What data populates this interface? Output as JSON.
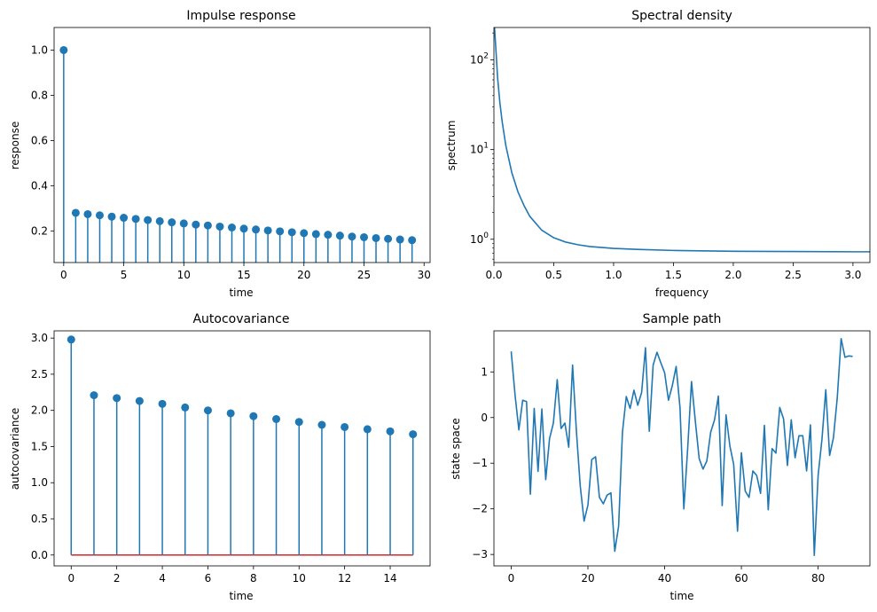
{
  "chart_data": [
    {
      "type": "stem",
      "title": "Impulse response",
      "xlabel": "time",
      "ylabel": "response",
      "xlim": [
        -0.8,
        30.5
      ],
      "ylim": [
        0.06,
        1.1
      ],
      "xticks": [
        0,
        5,
        10,
        15,
        20,
        25,
        30
      ],
      "yticks": [
        0.2,
        0.4,
        0.6,
        0.8,
        1.0
      ],
      "ytick_labels": [
        "0.2",
        "0.4",
        "0.6",
        "0.8",
        "1.0"
      ],
      "x": [
        0,
        1,
        2,
        3,
        4,
        5,
        6,
        7,
        8,
        9,
        10,
        11,
        12,
        13,
        14,
        15,
        16,
        17,
        18,
        19,
        20,
        21,
        22,
        23,
        24,
        25,
        26,
        27,
        28,
        29
      ],
      "values": [
        1.0,
        0.28,
        0.274,
        0.269,
        0.263,
        0.258,
        0.253,
        0.248,
        0.243,
        0.238,
        0.233,
        0.228,
        0.224,
        0.219,
        0.215,
        0.21,
        0.206,
        0.202,
        0.198,
        0.194,
        0.19,
        0.186,
        0.183,
        0.179,
        0.175,
        0.172,
        0.168,
        0.165,
        0.162,
        0.159
      ],
      "color": "#1f77b4"
    },
    {
      "type": "line",
      "title": "Spectral density",
      "xlabel": "frequency",
      "ylabel": "spectrum",
      "yscale": "log",
      "xlim": [
        0,
        3.1416
      ],
      "ylim": [
        0.55,
        230
      ],
      "xticks": [
        0,
        0.5,
        1.0,
        1.5,
        2.0,
        2.5,
        3.0
      ],
      "xtick_labels": [
        "0.0",
        "0.5",
        "1.0",
        "1.5",
        "2.0",
        "2.5",
        "3.0"
      ],
      "yticks": [
        1,
        10,
        100
      ],
      "ytick_labels": [
        "10^0",
        "10^1",
        "10^2"
      ],
      "x": [
        0.005,
        0.01,
        0.02,
        0.03,
        0.05,
        0.07,
        0.1,
        0.15,
        0.2,
        0.25,
        0.3,
        0.4,
        0.5,
        0.6,
        0.7,
        0.8,
        1.0,
        1.2,
        1.5,
        1.8,
        2.0,
        2.5,
        3.0,
        3.1416
      ],
      "values": [
        230,
        180,
        110,
        65,
        33,
        20,
        11,
        5.5,
        3.4,
        2.4,
        1.8,
        1.26,
        1.04,
        0.93,
        0.87,
        0.83,
        0.79,
        0.77,
        0.75,
        0.74,
        0.735,
        0.73,
        0.725,
        0.725
      ],
      "color": "#1f77b4"
    },
    {
      "type": "stem",
      "title": "Autocovariance",
      "xlabel": "time",
      "ylabel": "autocovariance",
      "xlim": [
        -0.75,
        15.75
      ],
      "ylim": [
        -0.15,
        3.1
      ],
      "xticks": [
        0,
        2,
        4,
        6,
        8,
        10,
        12,
        14
      ],
      "yticks": [
        0.0,
        0.5,
        1.0,
        1.5,
        2.0,
        2.5,
        3.0
      ],
      "ytick_labels": [
        "0.0",
        "0.5",
        "1.0",
        "1.5",
        "2.0",
        "2.5",
        "3.0"
      ],
      "x": [
        0,
        1,
        2,
        3,
        4,
        5,
        6,
        7,
        8,
        9,
        10,
        11,
        12,
        13,
        14,
        15
      ],
      "values": [
        2.98,
        2.21,
        2.17,
        2.13,
        2.09,
        2.04,
        2.0,
        1.96,
        1.92,
        1.88,
        1.84,
        1.8,
        1.77,
        1.74,
        1.71,
        1.67
      ],
      "baseline": 0,
      "baseline_color": "#d62728",
      "color": "#1f77b4"
    },
    {
      "type": "line",
      "title": "Sample path",
      "xlabel": "time",
      "ylabel": "state space",
      "xlim": [
        -4.5,
        93.5
      ],
      "ylim": [
        -3.25,
        1.9
      ],
      "xticks": [
        0,
        20,
        40,
        60,
        80
      ],
      "yticks": [
        -3,
        -2,
        -1,
        0,
        1
      ],
      "ytick_labels": [
        "−3",
        "−2",
        "−1",
        "0",
        "1"
      ],
      "x": [
        0,
        1,
        2,
        3,
        4,
        5,
        6,
        7,
        8,
        9,
        10,
        11,
        12,
        13,
        14,
        15,
        16,
        17,
        18,
        19,
        20,
        21,
        22,
        23,
        24,
        25,
        26,
        27,
        28,
        29,
        30,
        31,
        32,
        33,
        34,
        35,
        36,
        37,
        38,
        39,
        40,
        41,
        42,
        43,
        44,
        45,
        46,
        47,
        48,
        49,
        50,
        51,
        52,
        53,
        54,
        55,
        56,
        57,
        58,
        59,
        60,
        61,
        62,
        63,
        64,
        65,
        66,
        67,
        68,
        69,
        70,
        71,
        72,
        73,
        74,
        75,
        76,
        77,
        78,
        79,
        80,
        81,
        82,
        83,
        84,
        85,
        86,
        87,
        88,
        89
      ],
      "values": [
        1.45,
        0.5,
        -0.27,
        0.38,
        0.35,
        -1.68,
        0.2,
        -1.18,
        0.19,
        -1.36,
        -0.46,
        -0.12,
        0.83,
        -0.24,
        -0.12,
        -0.65,
        1.15,
        -0.3,
        -1.5,
        -2.27,
        -1.92,
        -0.92,
        -0.86,
        -1.75,
        -1.89,
        -1.7,
        -1.65,
        -2.93,
        -2.38,
        -0.32,
        0.46,
        0.2,
        0.6,
        0.27,
        0.55,
        1.53,
        -0.3,
        1.15,
        1.43,
        1.2,
        0.98,
        0.38,
        0.7,
        1.12,
        0.22,
        -2.0,
        -0.68,
        0.79,
        -0.08,
        -0.9,
        -1.13,
        -0.95,
        -0.32,
        -0.05,
        0.47,
        -1.93,
        0.06,
        -0.62,
        -1.03,
        -2.49,
        -0.77,
        -1.61,
        -1.75,
        -1.17,
        -1.27,
        -1.66,
        -0.17,
        -2.02,
        -0.68,
        -0.78,
        0.22,
        -0.03,
        -1.05,
        -0.05,
        -0.88,
        -0.4,
        -0.4,
        -1.17,
        -0.16,
        -3.02,
        -1.27,
        -0.48,
        0.61,
        -0.83,
        -0.44,
        0.44,
        1.73,
        1.32,
        1.35,
        1.34
      ],
      "color": "#1f77b4"
    }
  ]
}
